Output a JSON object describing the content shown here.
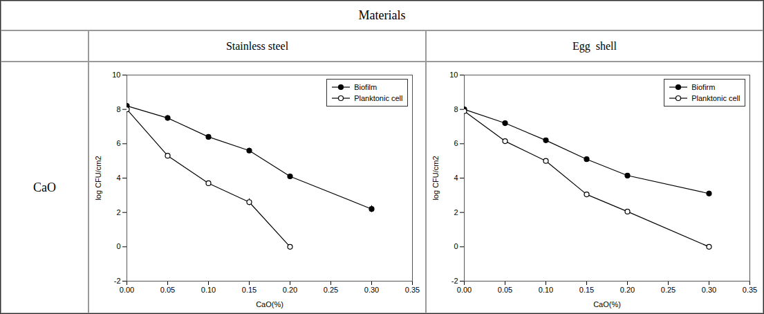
{
  "title": "Materials",
  "annotations": [
    "CaO"
  ],
  "chart_data": [
    {
      "type": "line",
      "title": "Stainless steel",
      "x_label": "CaO(%)",
      "y_label": "log CFU/cm2",
      "x": [
        0.0,
        0.05,
        0.1,
        0.15,
        0.2,
        0.3
      ],
      "series": [
        {
          "name": "Biofilm",
          "color": "#000000",
          "marker": "circle",
          "values": [
            8.2,
            7.5,
            6.4,
            5.6,
            4.1,
            2.2
          ],
          "errors": [
            0.1,
            0.15,
            0.12,
            0.15,
            0.12,
            0.2
          ]
        },
        {
          "name": "Planktonic cell",
          "color": "#000000",
          "marker": "open_circle",
          "values": [
            8.0,
            5.3,
            3.7,
            2.6,
            0.0,
            null
          ],
          "errors": [
            0.1,
            0.15,
            0.1,
            0.2,
            0.05,
            null
          ]
        }
      ],
      "xlim": [
        0.0,
        0.35
      ],
      "xticks": [
        {
          "value": 0.0,
          "label": "0.00"
        },
        0.05,
        {
          "value": 0.1,
          "label": "0.10"
        },
        0.15,
        {
          "value": 0.2,
          "label": "0.20"
        },
        0.25,
        {
          "value": 0.3,
          "label": "0.30"
        },
        0.35
      ],
      "ylim": [
        -2,
        10
      ],
      "yticks": [
        -2,
        0,
        2,
        4,
        6,
        8,
        10
      ],
      "legend": "upper right",
      "grid": false
    },
    {
      "type": "line",
      "title": "Egg  shell",
      "x_label": "CaO(%)",
      "y_label": "log CFU/cm2",
      "x": [
        0.0,
        0.05,
        0.1,
        0.15,
        0.2,
        0.3
      ],
      "series": [
        {
          "name": "Biofirm",
          "color": "#000000",
          "marker": "circle",
          "values": [
            8.0,
            7.2,
            6.2,
            5.1,
            4.15,
            3.1
          ],
          "errors": [
            0.1,
            0.1,
            0.1,
            0.12,
            0.12,
            0.15
          ]
        },
        {
          "name": "Planktonic cell",
          "color": "#000000",
          "marker": "open_circle",
          "values": [
            7.9,
            6.15,
            5.0,
            3.05,
            2.05,
            0.0
          ],
          "errors": [
            0.1,
            0.1,
            0.08,
            0.1,
            0.08,
            0.05
          ]
        }
      ],
      "xlim": [
        0.0,
        0.35
      ],
      "xticks": [
        {
          "value": 0.0,
          "label": "0.00"
        },
        0.05,
        {
          "value": 0.1,
          "label": "0.10"
        },
        0.15,
        {
          "value": 0.2,
          "label": "0.20"
        },
        0.25,
        {
          "value": 0.3,
          "label": "0.30"
        },
        0.35
      ],
      "ylim": [
        -2,
        10
      ],
      "yticks": [
        -2,
        0,
        2,
        4,
        6,
        8,
        10
      ],
      "legend": "upper right",
      "grid": false
    }
  ]
}
